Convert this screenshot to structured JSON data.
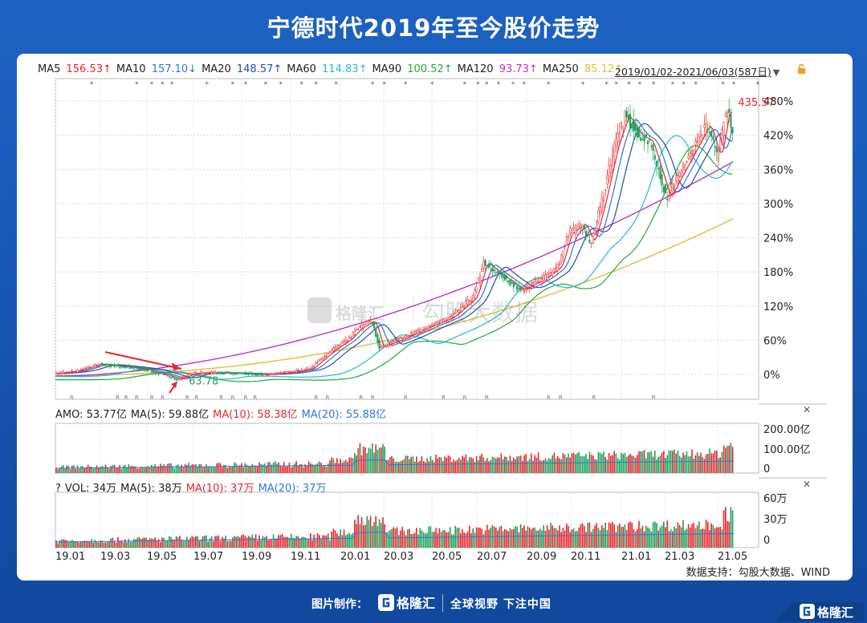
{
  "page": {
    "title": "宁德时代2019年至今股价走势",
    "source": "数据支持：勾股大数据、WIND",
    "footer_label": "图片制作：",
    "footer_brand": "格隆汇",
    "footer_slogan": "全球视野 下注中国",
    "watermark_brand": "格隆汇",
    "watermark_text": "勾股大数据",
    "corner_brand": "格隆汇"
  },
  "colors": {
    "bg": "#1657b5",
    "up": "#e8262b",
    "down": "#1fa05a",
    "ma5": "#e8262b",
    "ma10": "#2a76e0",
    "ma20": "#1f4fb3",
    "ma60": "#20b9d6",
    "ma90": "#22aa3a",
    "ma120": "#c02fd0",
    "ma250": "#e2bd3a"
  },
  "ma_legend": [
    {
      "label": "MA5",
      "value": "156.53↑",
      "color": "#e8262b"
    },
    {
      "label": "MA10",
      "value": "157.10↓",
      "color": "#2a76e0"
    },
    {
      "label": "MA20",
      "value": "148.57↑",
      "color": "#1f4fb3"
    },
    {
      "label": "MA60",
      "value": "114.83↑",
      "color": "#20b9d6"
    },
    {
      "label": "MA90",
      "value": "100.52↑",
      "color": "#22aa3a"
    },
    {
      "label": "MA120",
      "value": "93.73↑",
      "color": "#c02fd0"
    },
    {
      "label": "MA250",
      "value": "85.12↑",
      "color": "#e2bd3a"
    }
  ],
  "date_range": "2019/01/02-2021/06/03(587日)",
  "amo_legend": [
    {
      "label": "AMO: 53.77亿",
      "color": "#222"
    },
    {
      "label": "MA(5): 59.88亿",
      "color": "#222"
    },
    {
      "label": "MA(10): 58.38亿",
      "color": "#e8262b"
    },
    {
      "label": "MA(20): 55.88亿",
      "color": "#2a76e0"
    }
  ],
  "vol_legend": [
    {
      "label": "?",
      "color": "#222"
    },
    {
      "label": "VOL: 34万",
      "color": "#222"
    },
    {
      "label": "MA(5): 38万",
      "color": "#222"
    },
    {
      "label": "MA(10): 37万",
      "color": "#e8262b"
    },
    {
      "label": "MA(20): 37万",
      "color": "#2a76e0"
    }
  ],
  "chart_data": [
    {
      "type": "line",
      "title": "",
      "xlabel": "",
      "ylabel": "",
      "y_unit": "%",
      "ylim": [
        -25,
        495
      ],
      "yticks": [
        "0%",
        "60%",
        "120%",
        "180%",
        "240%",
        "300%",
        "360%",
        "420%",
        "480%"
      ],
      "xticks": [
        "19.01",
        "19.03",
        "19.05",
        "19.07",
        "19.09",
        "19.11",
        "20.01",
        "20.03",
        "20.05",
        "20.07",
        "20.09",
        "20.11",
        "21.01",
        "21.03",
        "21.05"
      ],
      "grid": true,
      "annotations": [
        {
          "text": "63.78",
          "color": "#1fa05a",
          "x": "2019-06-12",
          "y": -9
        },
        {
          "text": "435.57",
          "color": "#e8262b",
          "x": "2021-05-27",
          "y": 480
        }
      ],
      "x": [
        "2019-01-02",
        "2019-02-01",
        "2019-03-01",
        "2019-04-01",
        "2019-05-01",
        "2019-06-01",
        "2019-06-12",
        "2019-07-01",
        "2019-08-01",
        "2019-09-01",
        "2019-10-01",
        "2019-11-01",
        "2019-12-01",
        "2020-01-01",
        "2020-01-20",
        "2020-02-01",
        "2020-02-20",
        "2020-03-01",
        "2020-04-01",
        "2020-05-01",
        "2020-06-01",
        "2020-07-01",
        "2020-07-15",
        "2020-08-01",
        "2020-09-01",
        "2020-10-01",
        "2020-10-20",
        "2020-11-01",
        "2020-11-20",
        "2020-12-01",
        "2020-12-15",
        "2021-01-01",
        "2021-01-15",
        "2021-02-01",
        "2021-02-15",
        "2021-03-01",
        "2021-03-10",
        "2021-04-01",
        "2021-04-20",
        "2021-05-01",
        "2021-05-15",
        "2021-05-27",
        "2021-06-03"
      ],
      "series": [
        {
          "values": [
            2,
            6,
            18,
            14,
            9,
            -3,
            -9,
            2,
            3,
            2,
            0,
            3,
            10,
            45,
            62,
            80,
            95,
            48,
            64,
            83,
            100,
            135,
            198,
            178,
            148,
            170,
            190,
            247,
            265,
            230,
            300,
            402,
            455,
            420,
            410,
            350,
            310,
            365,
            412,
            440,
            380,
            470,
            430
          ]
        },
        {
          "values": [
            null,
            null,
            null,
            null,
            null,
            null,
            null,
            null,
            null,
            null,
            null,
            null,
            null,
            null,
            null,
            null,
            null,
            null,
            null,
            null,
            null,
            null,
            null,
            null,
            null,
            null,
            null,
            null,
            null,
            null,
            null,
            null,
            null,
            null,
            null,
            null,
            null,
            null,
            null,
            null,
            null,
            null,
            374
          ]
        },
        {
          "values": [
            null,
            null,
            null,
            null,
            null,
            null,
            null,
            null,
            null,
            null,
            null,
            null,
            null,
            null,
            null,
            null,
            null,
            null,
            null,
            null,
            null,
            null,
            null,
            null,
            null,
            null,
            null,
            null,
            null,
            null,
            null,
            null,
            null,
            null,
            null,
            null,
            null,
            null,
            null,
            null,
            null,
            null,
            274
          ]
        }
      ]
    },
    {
      "type": "bar",
      "title": "",
      "series": [
        {
          "values": []
        }
      ],
      "yticks": [
        "200.00亿",
        "100.00亿",
        "0"
      ],
      "ylim": [
        0,
        230
      ]
    },
    {
      "type": "bar",
      "title": "",
      "series": [
        {
          "values": []
        }
      ],
      "yticks": [
        "60万",
        "30万",
        "0"
      ],
      "ylim": [
        0,
        70
      ]
    }
  ]
}
